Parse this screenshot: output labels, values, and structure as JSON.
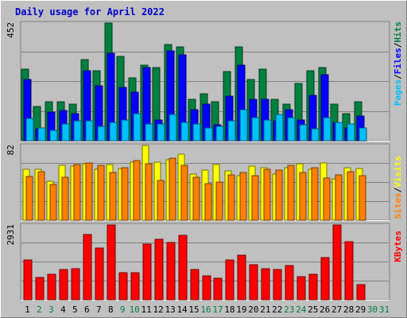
{
  "title": "Daily usage for April 2022",
  "colors": {
    "background": "#c0c0c0",
    "hits": "#008040",
    "files": "#0000ff",
    "pages": "#00c0ff",
    "visits": "#ff8000",
    "sites": "#ffff00",
    "kbytes": "#ff0000",
    "weekday_label": "#000000",
    "weekend_label": "#008040",
    "title_color": "#0000cc"
  },
  "right_labels": {
    "top": [
      {
        "text": "Pages",
        "color": "#00c0ff"
      },
      {
        "text": "/",
        "color": "#000000"
      },
      {
        "text": "Files",
        "color": "#0000ff"
      },
      {
        "text": "/",
        "color": "#000000"
      },
      {
        "text": "Hits",
        "color": "#008040"
      }
    ],
    "middle": [
      {
        "text": "Sites",
        "color": "#ff8000"
      },
      {
        "text": "/",
        "color": "#000000"
      },
      {
        "text": "Visits",
        "color": "#ffff00"
      }
    ],
    "bottom": [
      {
        "text": "KBytes",
        "color": "#ff0000"
      }
    ]
  },
  "chart_data": [
    {
      "type": "bar",
      "panel": "top",
      "max_label": "452",
      "ylim": [
        0,
        452
      ],
      "categories": [
        "1",
        "2",
        "3",
        "4",
        "5",
        "6",
        "7",
        "8",
        "9",
        "10",
        "11",
        "12",
        "13",
        "14",
        "15",
        "16",
        "17",
        "18",
        "19",
        "20",
        "21",
        "22",
        "23",
        "24",
        "25",
        "26",
        "27",
        "28",
        "29",
        "30",
        "31"
      ],
      "weekend_days": [
        "2",
        "3",
        "9",
        "10",
        "16",
        "17",
        "23",
        "24",
        "30",
        "31"
      ],
      "series": [
        {
          "name": "Hits",
          "values": [
            275,
            130,
            150,
            150,
            140,
            310,
            270,
            452,
            325,
            240,
            290,
            280,
            370,
            360,
            160,
            180,
            150,
            265,
            360,
            235,
            275,
            160,
            140,
            220,
            270,
            280,
            140,
            105,
            150,
            0,
            0
          ]
        },
        {
          "name": "Files",
          "values": [
            235,
            45,
            110,
            115,
            105,
            270,
            210,
            335,
            205,
            185,
            280,
            80,
            345,
            330,
            120,
            140,
            60,
            170,
            290,
            160,
            160,
            75,
            120,
            80,
            175,
            255,
            70,
            50,
            95,
            0,
            0
          ]
        },
        {
          "name": "Pages",
          "values": [
            85,
            50,
            40,
            65,
            75,
            75,
            55,
            70,
            80,
            105,
            65,
            65,
            100,
            70,
            65,
            50,
            55,
            75,
            120,
            90,
            80,
            100,
            90,
            60,
            45,
            90,
            70,
            65,
            50,
            0,
            0
          ]
        }
      ]
    },
    {
      "type": "bar",
      "panel": "middle",
      "max_label": "82",
      "ylim": [
        0,
        82
      ],
      "categories": [
        "1",
        "2",
        "3",
        "4",
        "5",
        "6",
        "7",
        "8",
        "9",
        "10",
        "11",
        "12",
        "13",
        "14",
        "15",
        "16",
        "17",
        "18",
        "19",
        "20",
        "21",
        "22",
        "23",
        "24",
        "25",
        "26",
        "27",
        "28",
        "29",
        "30",
        "31"
      ],
      "weekend_days": [
        "2",
        "3",
        "9",
        "10",
        "16",
        "17",
        "23",
        "24",
        "30",
        "31"
      ],
      "series": [
        {
          "name": "Visits",
          "values": [
            48,
            53,
            39,
            47,
            61,
            63,
            60,
            52,
            58,
            65,
            62,
            44,
            68,
            60,
            47,
            40,
            42,
            50,
            52,
            49,
            56,
            55,
            60,
            52,
            58,
            46,
            50,
            53,
            49,
            0,
            0
          ]
        },
        {
          "name": "Sites",
          "values": [
            56,
            56,
            43,
            60,
            59,
            62,
            56,
            61,
            57,
            64,
            82,
            64,
            66,
            72,
            51,
            55,
            61,
            54,
            49,
            59,
            58,
            51,
            58,
            62,
            56,
            63,
            45,
            58,
            57,
            0,
            0
          ]
        }
      ]
    },
    {
      "type": "bar",
      "panel": "bottom",
      "max_label": "2931",
      "ylim": [
        0,
        2931
      ],
      "categories": [
        "1",
        "2",
        "3",
        "4",
        "5",
        "6",
        "7",
        "8",
        "9",
        "10",
        "11",
        "12",
        "13",
        "14",
        "15",
        "16",
        "17",
        "18",
        "19",
        "20",
        "21",
        "22",
        "23",
        "24",
        "25",
        "26",
        "27",
        "28",
        "29",
        "30",
        "31"
      ],
      "weekend_days": [
        "2",
        "3",
        "9",
        "10",
        "16",
        "17",
        "23",
        "24",
        "30",
        "31"
      ],
      "series": [
        {
          "name": "KBytes",
          "values": [
            1560,
            870,
            1010,
            1190,
            1220,
            2550,
            2040,
            2931,
            1050,
            1050,
            2180,
            2360,
            2250,
            2530,
            1200,
            930,
            830,
            1550,
            1750,
            1380,
            1230,
            1200,
            1330,
            890,
            1010,
            1650,
            2930,
            2290,
            600,
            0,
            0
          ]
        }
      ]
    }
  ]
}
